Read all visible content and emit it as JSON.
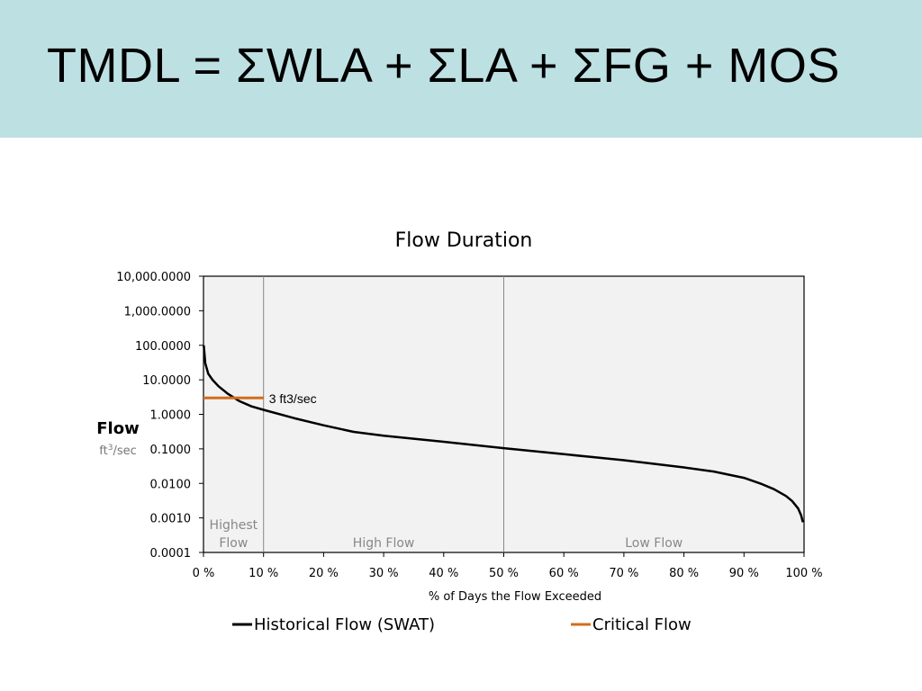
{
  "slide": {
    "title": "TMDL = ΣWLA + ΣLA + ΣFG + MOS"
  },
  "colors": {
    "band": "#bde0e3",
    "historical": "#000000",
    "critical": "#d36d1c",
    "plot_bg": "#f2f2f2",
    "zone_text": "#888888"
  },
  "chart_data": {
    "type": "line",
    "title": "Flow Duration",
    "xlabel": "% of Days the Flow Exceeded",
    "ylabel": "Flow",
    "ylabel_unit_base": "ft",
    "ylabel_unit_sup": "3",
    "ylabel_unit_tail": "/sec",
    "x_scale": "linear",
    "y_scale": "log",
    "xlim": [
      0,
      100
    ],
    "ylim": [
      0.0001,
      10000
    ],
    "grid": false,
    "legend_position": "bottom",
    "x_ticks": [
      0,
      10,
      20,
      30,
      40,
      50,
      60,
      70,
      80,
      90,
      100
    ],
    "x_tick_labels": [
      "0 %",
      "10 %",
      "20 %",
      "30 %",
      "40 %",
      "50 %",
      "60 %",
      "70 %",
      "80 %",
      "90 %",
      "100 %"
    ],
    "y_ticks": [
      10000,
      1000,
      100,
      10,
      1,
      0.1,
      0.01,
      0.001,
      0.0001
    ],
    "y_tick_labels": [
      "10,000.0000",
      "1,000.0000",
      "100.0000",
      "10.0000",
      "1.0000",
      "0.1000",
      "0.0100",
      "0.0010",
      "0.0001"
    ],
    "zones": [
      {
        "label_lines": [
          "Highest",
          "Flow"
        ],
        "from": 0,
        "to": 10
      },
      {
        "label_lines": [
          "High Flow"
        ],
        "from": 10,
        "to": 50
      },
      {
        "label_lines": [
          "Low Flow"
        ],
        "from": 50,
        "to": 100
      }
    ],
    "zone_dividers": [
      10,
      50
    ],
    "series": [
      {
        "name": "Historical Flow (SWAT)",
        "color": "#000000",
        "x": [
          0.05,
          0.3,
          0.8,
          1.5,
          2.5,
          4,
          6,
          8,
          10,
          15,
          20,
          25,
          30,
          40,
          50,
          60,
          70,
          80,
          85,
          90,
          93,
          95,
          97,
          98,
          99,
          99.5,
          99.8
        ],
        "y": [
          100,
          30,
          15,
          10,
          6.5,
          4.0,
          2.4,
          1.7,
          1.35,
          0.78,
          0.48,
          0.31,
          0.24,
          0.16,
          0.105,
          0.07,
          0.047,
          0.029,
          0.022,
          0.0145,
          0.0095,
          0.0068,
          0.0043,
          0.0031,
          0.0019,
          0.0012,
          0.00075
        ]
      },
      {
        "name": "Critical Flow",
        "color": "#d36d1c",
        "x": [
          0,
          10
        ],
        "y": [
          3,
          3
        ]
      }
    ],
    "annotations": [
      {
        "text": "3 ft3/sec",
        "x": 10,
        "y": 3
      }
    ]
  }
}
